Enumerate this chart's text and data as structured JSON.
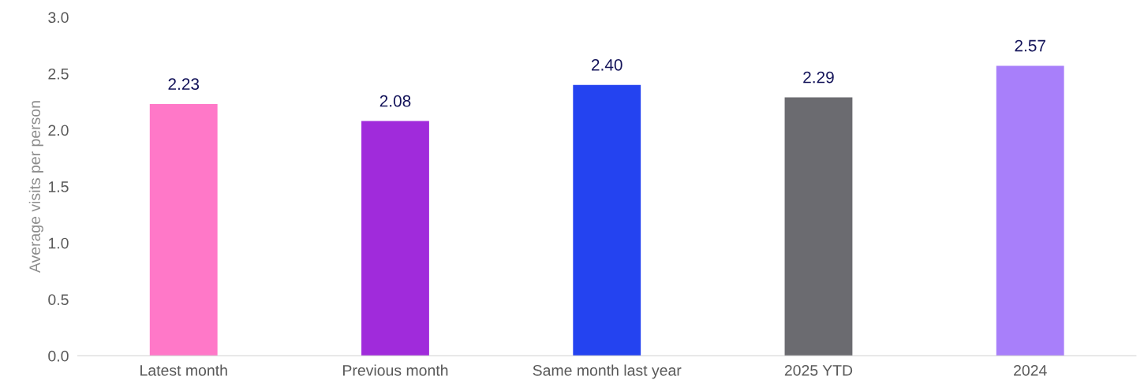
{
  "chart_data": {
    "type": "bar",
    "ylabel": "Average visits per person",
    "categories": [
      "Latest month",
      "Previous month",
      "Same month last year",
      "2025 YTD",
      "2024"
    ],
    "values": [
      2.23,
      2.08,
      2.4,
      2.29,
      2.57
    ],
    "value_labels": [
      "2.23",
      "2.08",
      "2.40",
      "2.29",
      "2.57"
    ],
    "colors": [
      "#ff78c8",
      "#a02bdb",
      "#2443f0",
      "#6b6b70",
      "#a87ffa"
    ],
    "ylim": [
      0,
      3.0
    ],
    "yticks": [
      {
        "value": 0,
        "label": "0.0"
      },
      {
        "value": 0.5,
        "label": "0.5"
      },
      {
        "value": 1.0,
        "label": "1.0"
      },
      {
        "value": 1.5,
        "label": "1.5"
      },
      {
        "value": 2.0,
        "label": "2.0"
      },
      {
        "value": 2.5,
        "label": "2.5"
      },
      {
        "value": 3.0,
        "label": "3.0"
      }
    ],
    "grid": false,
    "legend": false
  }
}
